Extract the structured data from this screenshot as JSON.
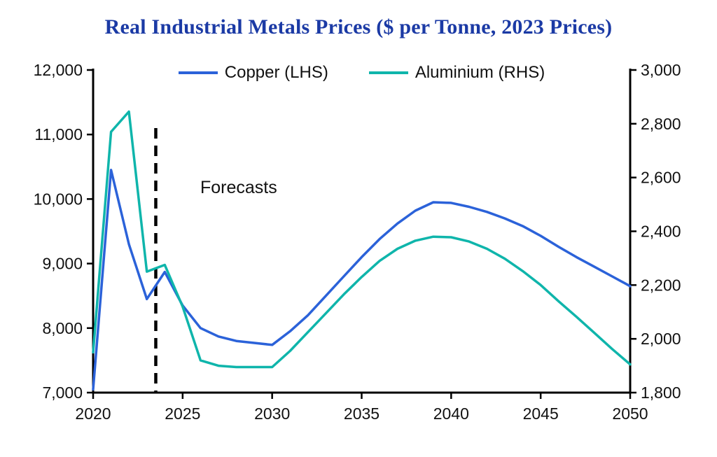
{
  "title": "Real Industrial Metals Prices ($ per Tonne, 2023 Prices)",
  "annotation": {
    "label": "Forecasts"
  },
  "colors": {
    "title": "#1b3aa5",
    "axis": "#000000",
    "tick_text": "#111111",
    "forecast_line": "#000000"
  },
  "chart_data": {
    "type": "line",
    "title": "Real Industrial Metals Prices ($ per Tonne, 2023 Prices)",
    "xlabel": "",
    "ylabel_left": "",
    "ylabel_right": "",
    "grid": false,
    "legend_position": "top-center",
    "forecast_start": 2023.5,
    "forecast_line_top_left_value": 11100,
    "x": [
      2020,
      2021,
      2022,
      2023,
      2024,
      2025,
      2026,
      2027,
      2028,
      2029,
      2030,
      2031,
      2032,
      2033,
      2034,
      2035,
      2036,
      2037,
      2038,
      2039,
      2040,
      2041,
      2042,
      2043,
      2044,
      2045,
      2046,
      2047,
      2048,
      2049,
      2050
    ],
    "x_axis": {
      "min": 2020,
      "max": 2050,
      "ticks": [
        2020,
        2025,
        2030,
        2035,
        2040,
        2045,
        2050
      ]
    },
    "left_axis": {
      "min": 7000,
      "max": 12000,
      "ticks": [
        7000,
        8000,
        9000,
        10000,
        11000,
        12000
      ]
    },
    "right_axis": {
      "min": 1800,
      "max": 3000,
      "ticks": [
        1800,
        2000,
        2200,
        2400,
        2600,
        2800,
        3000
      ]
    },
    "series": [
      {
        "name": "Copper (LHS)",
        "axis": "left",
        "color": "#2b62d9",
        "values": [
          7050,
          10450,
          9300,
          8450,
          8870,
          8350,
          8000,
          7870,
          7800,
          7770,
          7740,
          7950,
          8200,
          8500,
          8800,
          9100,
          9380,
          9620,
          9820,
          9950,
          9940,
          9880,
          9800,
          9700,
          9580,
          9430,
          9260,
          9100,
          8950,
          8800,
          8650
        ]
      },
      {
        "name": "Aluminium (RHS)",
        "axis": "right",
        "color": "#0fb5ab",
        "values": [
          1950,
          2770,
          2845,
          2250,
          2275,
          2120,
          1920,
          1900,
          1895,
          1895,
          1895,
          1955,
          2025,
          2095,
          2165,
          2230,
          2290,
          2335,
          2365,
          2380,
          2378,
          2362,
          2335,
          2298,
          2252,
          2200,
          2140,
          2082,
          2022,
          1962,
          1905
        ]
      }
    ]
  }
}
